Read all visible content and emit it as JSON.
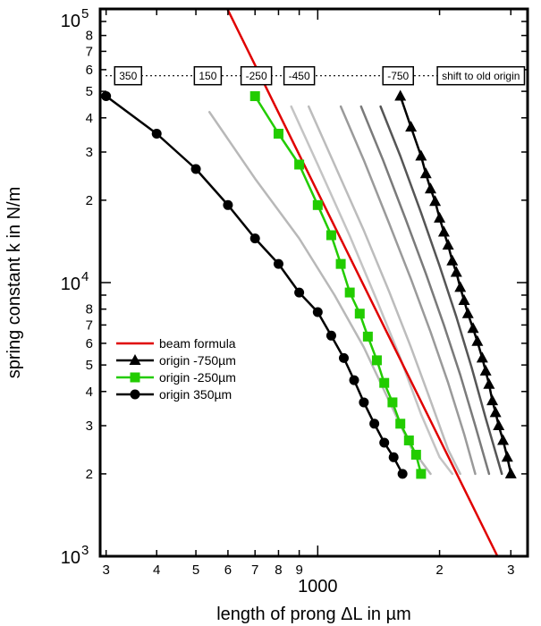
{
  "chart_data": {
    "type": "line",
    "title": "",
    "xlabel": "length of prong ΔL in µm",
    "ylabel": "spring constant k in N/m",
    "xscale": "log",
    "yscale": "log",
    "xlim": [
      290,
      3300
    ],
    "ylim": [
      1000,
      100000
    ],
    "grid": false,
    "legend_position": "lower-left",
    "x_major_tick_labels": [
      {
        "value": 1000,
        "label": "1000"
      }
    ],
    "x_minor_tick_labels": [
      {
        "value": 300,
        "label": "3"
      },
      {
        "value": 400,
        "label": "4"
      },
      {
        "value": 500,
        "label": "5"
      },
      {
        "value": 600,
        "label": "6"
      },
      {
        "value": 700,
        "label": "7"
      },
      {
        "value": 800,
        "label": "8"
      },
      {
        "value": 900,
        "label": "9"
      },
      {
        "value": 2000,
        "label": "2"
      },
      {
        "value": 3000,
        "label": "3"
      }
    ],
    "y_major_tick_labels": [
      {
        "value": 1000,
        "base": "10",
        "exp": "3"
      },
      {
        "value": 10000,
        "base": "10",
        "exp": "4"
      },
      {
        "value": 100000,
        "base": "10",
        "exp": "5"
      }
    ],
    "y_minor_tick_labels": [
      {
        "value": 2000,
        "label": "2"
      },
      {
        "value": 3000,
        "label": "3"
      },
      {
        "value": 4000,
        "label": "4"
      },
      {
        "value": 5000,
        "label": "5"
      },
      {
        "value": 6000,
        "label": "6"
      },
      {
        "value": 7000,
        "label": "7"
      },
      {
        "value": 8000,
        "label": "8"
      },
      {
        "value": 20000,
        "label": "2"
      },
      {
        "value": 30000,
        "label": "3"
      },
      {
        "value": 40000,
        "label": "4"
      },
      {
        "value": 50000,
        "label": "5"
      },
      {
        "value": 60000,
        "label": "6"
      },
      {
        "value": 70000,
        "label": "7"
      },
      {
        "value": 80000,
        "label": "8"
      }
    ],
    "shift_line": {
      "y": 57000,
      "boxes": [
        {
          "x": 340,
          "label": "350"
        },
        {
          "x": 535,
          "label": "150"
        },
        {
          "x": 705,
          "label": "-250"
        },
        {
          "x": 900,
          "label": "-450"
        },
        {
          "x": 1580,
          "label": "-750"
        },
        {
          "x": 2530,
          "label": "shift to old origin"
        }
      ]
    },
    "series": [
      {
        "name": "beam formula",
        "color": "#e00000",
        "marker": "none",
        "points": [
          [
            600,
            99000
          ],
          [
            1000,
            21400
          ],
          [
            1500,
            6350
          ],
          [
            2000,
            2680
          ],
          [
            2780,
            1000
          ]
        ]
      },
      {
        "name": "origin -750µm",
        "color": "#000000",
        "marker": "triangle",
        "points": [
          [
            1600,
            48000
          ],
          [
            1700,
            37000
          ],
          [
            1800,
            29000
          ],
          [
            1850,
            25000
          ],
          [
            1900,
            22000
          ],
          [
            1950,
            19800
          ],
          [
            2000,
            17200
          ],
          [
            2050,
            15300
          ],
          [
            2100,
            13700
          ],
          [
            2150,
            12000
          ],
          [
            2200,
            10900
          ],
          [
            2250,
            9600
          ],
          [
            2300,
            8600
          ],
          [
            2350,
            7700
          ],
          [
            2420,
            6800
          ],
          [
            2480,
            6100
          ],
          [
            2550,
            5300
          ],
          [
            2600,
            4750
          ],
          [
            2650,
            4250
          ],
          [
            2700,
            3700
          ],
          [
            2750,
            3350
          ],
          [
            2800,
            3000
          ],
          [
            2870,
            2650
          ],
          [
            2940,
            2300
          ],
          [
            3000,
            2000
          ]
        ]
      },
      {
        "name": "origin -250µm",
        "color": "#22cc00",
        "marker": "square",
        "points": [
          [
            700,
            48000
          ],
          [
            800,
            35000
          ],
          [
            900,
            27000
          ],
          [
            1000,
            19200
          ],
          [
            1080,
            14900
          ],
          [
            1140,
            11700
          ],
          [
            1200,
            9200
          ],
          [
            1270,
            7700
          ],
          [
            1330,
            6350
          ],
          [
            1400,
            5200
          ],
          [
            1460,
            4300
          ],
          [
            1530,
            3650
          ],
          [
            1600,
            3050
          ],
          [
            1680,
            2650
          ],
          [
            1750,
            2350
          ],
          [
            1800,
            2000
          ]
        ]
      },
      {
        "name": "origin 350µm",
        "color": "#000000",
        "marker": "circle",
        "points": [
          [
            300,
            48000
          ],
          [
            400,
            35000
          ],
          [
            500,
            26000
          ],
          [
            600,
            19200
          ],
          [
            700,
            14500
          ],
          [
            800,
            11700
          ],
          [
            900,
            9200
          ],
          [
            1000,
            7800
          ],
          [
            1080,
            6400
          ],
          [
            1160,
            5300
          ],
          [
            1230,
            4400
          ],
          [
            1300,
            3650
          ],
          [
            1380,
            3050
          ],
          [
            1460,
            2600
          ],
          [
            1540,
            2300
          ],
          [
            1620,
            2000
          ]
        ]
      },
      {
        "name": "",
        "color": "#b8b8b8",
        "marker": "none",
        "points": [
          [
            540,
            42000
          ],
          [
            700,
            24000
          ],
          [
            900,
            14500
          ],
          [
            1100,
            9000
          ],
          [
            1300,
            5800
          ],
          [
            1500,
            3700
          ],
          [
            1700,
            2500
          ],
          [
            1900,
            2000
          ]
        ]
      },
      {
        "name": "",
        "color": "#c4c4c4",
        "marker": "none",
        "points": [
          [
            860,
            44000
          ],
          [
            1000,
            27000
          ],
          [
            1200,
            14800
          ],
          [
            1400,
            8600
          ],
          [
            1600,
            5300
          ],
          [
            1800,
            3300
          ],
          [
            2000,
            2300
          ],
          [
            2150,
            2000
          ]
        ]
      },
      {
        "name": "",
        "color": "#bcbcbc",
        "marker": "none",
        "points": [
          [
            950,
            44000
          ],
          [
            1100,
            27000
          ],
          [
            1300,
            15500
          ],
          [
            1500,
            9300
          ],
          [
            1700,
            5800
          ],
          [
            1900,
            3700
          ],
          [
            2100,
            2450
          ],
          [
            2250,
            2000
          ]
        ]
      },
      {
        "name": "",
        "color": "#9a9a9a",
        "marker": "none",
        "points": [
          [
            1140,
            44000
          ],
          [
            1300,
            28000
          ],
          [
            1500,
            16500
          ],
          [
            1700,
            10300
          ],
          [
            1900,
            6600
          ],
          [
            2100,
            4300
          ],
          [
            2300,
            2800
          ],
          [
            2450,
            2000
          ]
        ]
      },
      {
        "name": "",
        "color": "#7a7a7a",
        "marker": "none",
        "points": [
          [
            1280,
            44000
          ],
          [
            1450,
            28000
          ],
          [
            1650,
            17000
          ],
          [
            1850,
            10800
          ],
          [
            2050,
            7000
          ],
          [
            2250,
            4600
          ],
          [
            2450,
            3000
          ],
          [
            2650,
            2000
          ]
        ]
      },
      {
        "name": "",
        "color": "#555555",
        "marker": "none",
        "points": [
          [
            1430,
            44000
          ],
          [
            1600,
            29000
          ],
          [
            1800,
            18000
          ],
          [
            2000,
            11500
          ],
          [
            2200,
            7500
          ],
          [
            2400,
            4900
          ],
          [
            2600,
            3200
          ],
          [
            2850,
            2000
          ]
        ]
      }
    ]
  }
}
